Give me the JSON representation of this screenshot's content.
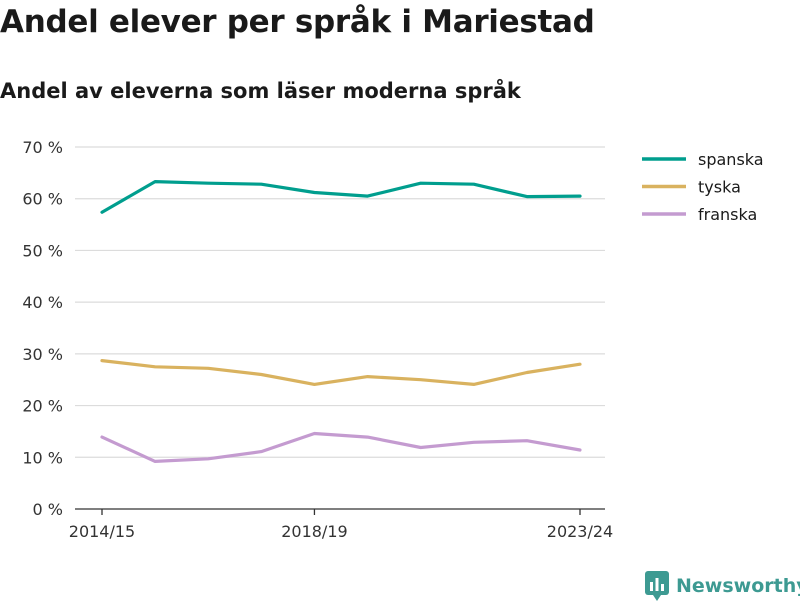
{
  "title": "Andel elever per språk i Mariestad",
  "subtitle": "Andel av eleverna som läser moderna språk",
  "brand": {
    "name": "Newsworthy",
    "icon": "newsworthy-logo-icon",
    "color": "#3d9a92"
  },
  "chart_data": {
    "type": "line",
    "title": "Andel elever per språk i Mariestad",
    "subtitle": "Andel av eleverna som läser moderna språk",
    "x": [
      "2014/15",
      "2015/16",
      "2016/17",
      "2017/18",
      "2018/19",
      "2019/20",
      "2020/21",
      "2021/22",
      "2022/23",
      "2023/24"
    ],
    "x_tick_labels": [
      "2014/15",
      "2018/19",
      "2023/24"
    ],
    "y_ticks": [
      "0 %",
      "10 %",
      "20 %",
      "30 %",
      "40 %",
      "50 %",
      "60 %",
      "70 %"
    ],
    "ylim": [
      0,
      70
    ],
    "grid": true,
    "legend_position": "top-right",
    "series": [
      {
        "name": "spanska",
        "color": "#009e8e",
        "values": [
          57.4,
          63.3,
          63.0,
          62.8,
          61.2,
          60.5,
          63.0,
          62.8,
          60.4,
          60.5
        ]
      },
      {
        "name": "tyska",
        "color": "#d9b25f",
        "values": [
          28.7,
          27.5,
          27.2,
          26.0,
          24.1,
          25.6,
          25.0,
          24.1,
          26.4,
          28.0
        ]
      },
      {
        "name": "franska",
        "color": "#c49bd0",
        "values": [
          13.9,
          9.2,
          9.7,
          11.1,
          14.6,
          13.9,
          11.9,
          12.9,
          13.2,
          11.4
        ]
      }
    ]
  }
}
